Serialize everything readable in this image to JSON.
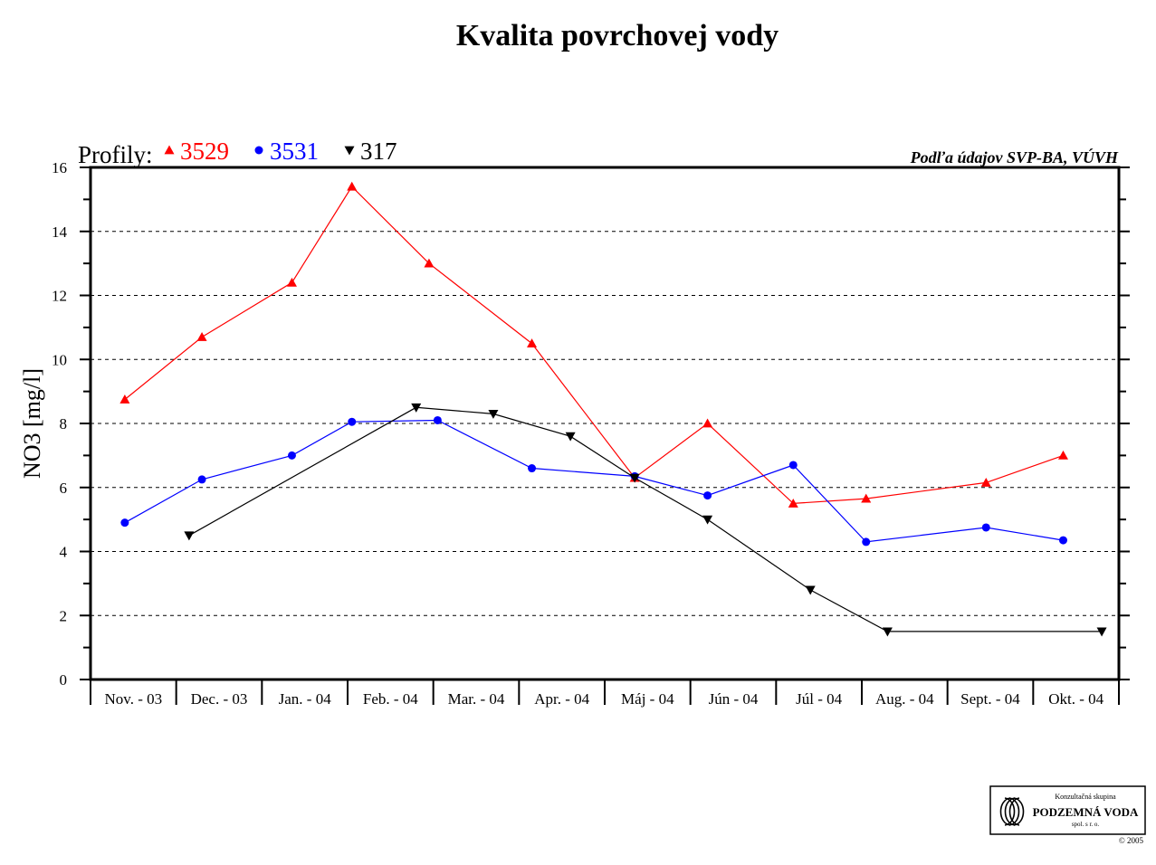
{
  "chart_data": {
    "type": "line",
    "title": "Kvalita povrchovej vody",
    "source_note": "Podľa údajov SVP-BA, VÚVH",
    "ylabel": "NO3 [mg/l]",
    "xlabel": "",
    "legend_prefix": "Profily:",
    "legend_position": "top-left",
    "grid": true,
    "ylim": [
      0,
      16
    ],
    "yticks": [
      "0",
      "2",
      "4",
      "6",
      "8",
      "10",
      "12",
      "14",
      "16"
    ],
    "categories": [
      "Nov. - 03",
      "Dec. - 03",
      "Jan. - 04",
      "Feb. - 04",
      "Mar. - 04",
      "Apr. - 04",
      "Máj - 04",
      "Jún - 04",
      "Júl - 04",
      "Aug. - 04",
      "Sept. - 04",
      "Okt. - 04"
    ],
    "series": [
      {
        "name": "3529",
        "color": "#ff0000",
        "marker": "triangle-up",
        "points": [
          {
            "x": 0.4,
            "y": 8.75
          },
          {
            "x": 1.3,
            "y": 10.7
          },
          {
            "x": 2.35,
            "y": 12.4
          },
          {
            "x": 3.05,
            "y": 15.4
          },
          {
            "x": 3.95,
            "y": 13.0
          },
          {
            "x": 5.15,
            "y": 10.5
          },
          {
            "x": 6.35,
            "y": 6.3
          },
          {
            "x": 7.2,
            "y": 8.0
          },
          {
            "x": 8.2,
            "y": 5.5
          },
          {
            "x": 9.05,
            "y": 5.65
          },
          {
            "x": 10.45,
            "y": 6.15
          },
          {
            "x": 11.35,
            "y": 7.0
          }
        ]
      },
      {
        "name": "3531",
        "color": "#0000ff",
        "marker": "circle",
        "points": [
          {
            "x": 0.4,
            "y": 4.9
          },
          {
            "x": 1.3,
            "y": 6.25
          },
          {
            "x": 2.35,
            "y": 7.0
          },
          {
            "x": 3.05,
            "y": 8.05
          },
          {
            "x": 4.05,
            "y": 8.1
          },
          {
            "x": 5.15,
            "y": 6.6
          },
          {
            "x": 6.35,
            "y": 6.35
          },
          {
            "x": 7.2,
            "y": 5.75
          },
          {
            "x": 8.2,
            "y": 6.7
          },
          {
            "x": 9.05,
            "y": 4.3
          },
          {
            "x": 10.45,
            "y": 4.75
          },
          {
            "x": 11.35,
            "y": 4.35
          }
        ]
      },
      {
        "name": "317",
        "color": "#000000",
        "marker": "triangle-down",
        "points": [
          {
            "x": 1.15,
            "y": 4.5
          },
          {
            "x": 3.8,
            "y": 8.5
          },
          {
            "x": 4.7,
            "y": 8.3
          },
          {
            "x": 5.6,
            "y": 7.6
          },
          {
            "x": 6.35,
            "y": 6.3
          },
          {
            "x": 7.2,
            "y": 5.0
          },
          {
            "x": 8.4,
            "y": 2.8
          },
          {
            "x": 9.3,
            "y": 1.5
          },
          {
            "x": 11.8,
            "y": 1.5
          }
        ]
      }
    ]
  },
  "logo": {
    "line1": "Konzultačná skupina",
    "line2": "PODZEMNÁ VODA",
    "line3": "spol. s r. o.",
    "copyright": "© 2005"
  }
}
